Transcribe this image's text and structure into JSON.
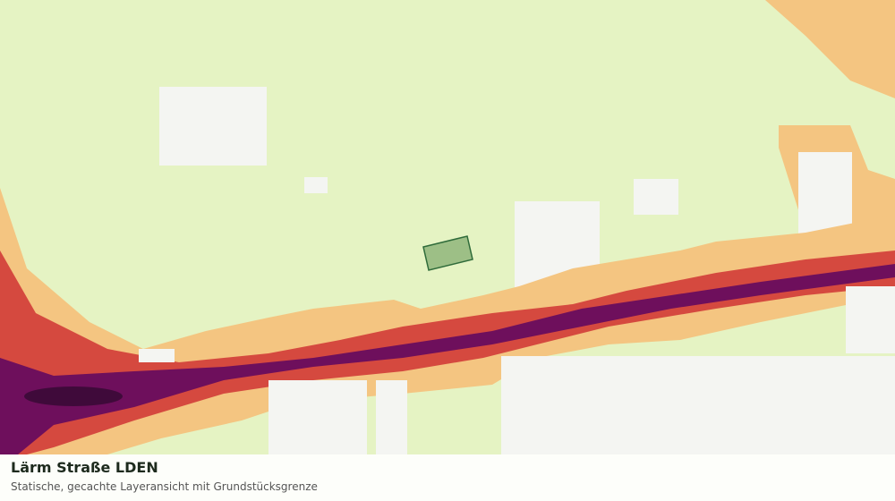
{
  "caption": {
    "title": "Lärm Straße LDEN",
    "subtitle": "Statische, gecachte Layeransicht mit Grundstücksgrenze"
  }
}
